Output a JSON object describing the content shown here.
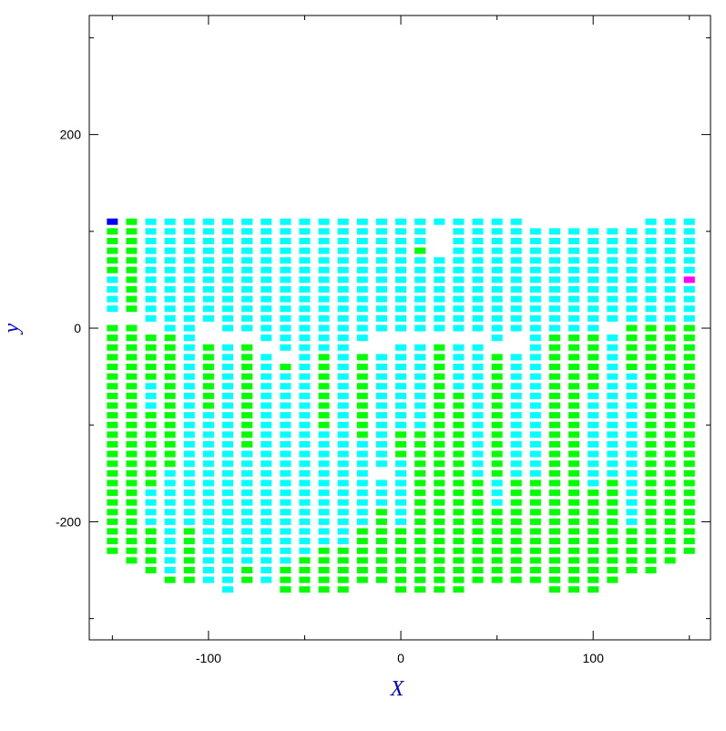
{
  "chart_data": {
    "type": "runs",
    "x_label": "X",
    "y_label": "y",
    "xlim": [
      -162,
      161
    ],
    "ylim": [
      -322,
      323
    ],
    "xticks": [
      -100,
      0,
      100
    ],
    "xminor": [
      -150,
      -50,
      50,
      150
    ],
    "yticks": [
      -200,
      0,
      200
    ],
    "yminor": [
      -300,
      -100,
      100,
      300
    ],
    "label_color": "#0000cc",
    "series": [
      {
        "color": "#00ff00",
        "runs": [
          [
            -150,
            100,
            60
          ],
          [
            -150,
            0,
            -230
          ],
          [
            -140,
            110,
            20
          ],
          [
            -140,
            0,
            -240
          ],
          [
            -130,
            -10,
            -50
          ],
          [
            -130,
            -90,
            -160
          ],
          [
            -130,
            -210,
            -250
          ],
          [
            -120,
            -10,
            -140
          ],
          [
            -120,
            -260,
            -260
          ],
          [
            -110,
            -210,
            -260
          ],
          [
            -100,
            -20,
            -80
          ],
          [
            -80,
            -20,
            -120
          ],
          [
            -80,
            -250,
            -260
          ],
          [
            -60,
            -40,
            -40
          ],
          [
            -60,
            -250,
            -270
          ],
          [
            -50,
            -240,
            -270
          ],
          [
            -40,
            -30,
            -100
          ],
          [
            -40,
            -230,
            -270
          ],
          [
            -30,
            -230,
            -270
          ],
          [
            -20,
            -30,
            -110
          ],
          [
            -20,
            -210,
            -260
          ],
          [
            -10,
            -190,
            -260
          ],
          [
            0,
            -110,
            -130
          ],
          [
            0,
            -210,
            -270
          ],
          [
            10,
            80,
            80
          ],
          [
            10,
            -110,
            -270
          ],
          [
            20,
            -20,
            -270
          ],
          [
            30,
            -70,
            -270
          ],
          [
            40,
            -160,
            -260
          ],
          [
            50,
            -30,
            -150
          ],
          [
            50,
            -190,
            -260
          ],
          [
            60,
            -160,
            -260
          ],
          [
            70,
            -160,
            -260
          ],
          [
            80,
            -10,
            -270
          ],
          [
            90,
            -10,
            -270
          ],
          [
            100,
            -10,
            -60
          ],
          [
            100,
            -170,
            -270
          ],
          [
            110,
            -160,
            -260
          ],
          [
            120,
            0,
            -40
          ],
          [
            120,
            -210,
            -250
          ],
          [
            130,
            0,
            -250
          ],
          [
            140,
            0,
            -240
          ],
          [
            150,
            0,
            -230
          ]
        ]
      },
      {
        "color": "#00ffff",
        "runs": [
          [
            -150,
            50,
            20
          ],
          [
            -130,
            110,
            10
          ],
          [
            -130,
            -60,
            -80
          ],
          [
            -130,
            -170,
            -200
          ],
          [
            -120,
            110,
            0
          ],
          [
            -120,
            -150,
            -250
          ],
          [
            -110,
            110,
            0
          ],
          [
            -110,
            -10,
            -200
          ],
          [
            -100,
            110,
            10
          ],
          [
            -100,
            -90,
            -260
          ],
          [
            -90,
            110,
            0
          ],
          [
            -90,
            -20,
            -270
          ],
          [
            -80,
            110,
            0
          ],
          [
            -80,
            -130,
            -240
          ],
          [
            -70,
            110,
            -10
          ],
          [
            -70,
            -30,
            -260
          ],
          [
            -60,
            110,
            -20
          ],
          [
            -60,
            -50,
            -240
          ],
          [
            -50,
            110,
            -20
          ],
          [
            -50,
            -30,
            -230
          ],
          [
            -40,
            110,
            -20
          ],
          [
            -40,
            -110,
            -220
          ],
          [
            -30,
            110,
            -20
          ],
          [
            -30,
            -30,
            -220
          ],
          [
            -20,
            110,
            -10
          ],
          [
            -20,
            -120,
            -200
          ],
          [
            -10,
            110,
            0
          ],
          [
            -10,
            -30,
            -140
          ],
          [
            -10,
            -160,
            -180
          ],
          [
            0,
            110,
            0
          ],
          [
            0,
            -20,
            -100
          ],
          [
            0,
            -140,
            -200
          ],
          [
            10,
            110,
            90
          ],
          [
            10,
            70,
            0
          ],
          [
            10,
            -20,
            -100
          ],
          [
            20,
            110,
            110
          ],
          [
            20,
            70,
            0
          ],
          [
            30,
            110,
            0
          ],
          [
            30,
            -20,
            -60
          ],
          [
            40,
            110,
            0
          ],
          [
            40,
            -20,
            -150
          ],
          [
            50,
            110,
            -10
          ],
          [
            50,
            -160,
            -180
          ],
          [
            60,
            110,
            0
          ],
          [
            60,
            -30,
            -150
          ],
          [
            70,
            100,
            0
          ],
          [
            70,
            -10,
            -150
          ],
          [
            80,
            100,
            0
          ],
          [
            90,
            100,
            0
          ],
          [
            100,
            100,
            0
          ],
          [
            100,
            -70,
            -160
          ],
          [
            110,
            100,
            10
          ],
          [
            110,
            -10,
            -150
          ],
          [
            120,
            100,
            10
          ],
          [
            120,
            -50,
            -200
          ],
          [
            130,
            110,
            10
          ],
          [
            140,
            110,
            10
          ],
          [
            150,
            110,
            60
          ],
          [
            150,
            40,
            10
          ]
        ]
      },
      {
        "color": "#0000ff",
        "runs": [
          [
            -150,
            110,
            110
          ]
        ]
      },
      {
        "color": "#ff00ff",
        "runs": [
          [
            150,
            50,
            50
          ]
        ]
      }
    ]
  }
}
